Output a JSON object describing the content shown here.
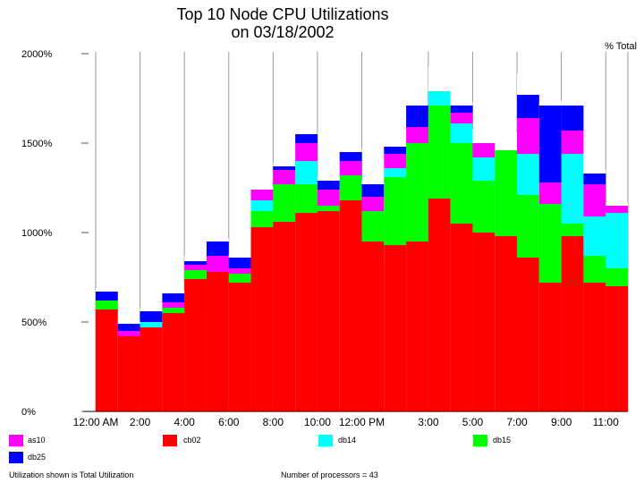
{
  "chart_data": {
    "type": "bar",
    "stacked": true,
    "title": [
      "Top 10 Node CPU Utilizations",
      "on 03/18/2002"
    ],
    "unit_label": "% Total",
    "ylim": [
      0,
      2000
    ],
    "y_ticks": [
      "0%",
      "500%",
      "1000%",
      "1500%",
      "2000%"
    ],
    "y_tick_values": [
      0,
      500,
      1000,
      1500,
      2000
    ],
    "x_tick_labels": [
      "12:00 AM",
      "2:00",
      "4:00",
      "6:00",
      "8:00",
      "10:00",
      "12:00 PM",
      "3:00",
      "5:00",
      "7:00",
      "9:00",
      "11:00"
    ],
    "x_tick_bar_index": [
      0,
      2,
      4,
      6,
      8,
      10,
      12,
      15,
      17,
      19,
      21,
      23
    ],
    "bar_count": 24,
    "grid": "vertical",
    "legend_placement": "bottom",
    "series": [
      {
        "name": "cb02",
        "color": "#ff0000",
        "values": [
          570,
          420,
          470,
          550,
          740,
          780,
          720,
          1030,
          1060,
          1110,
          1120,
          1180,
          950,
          930,
          950,
          1190,
          1050,
          1000,
          980,
          860,
          720,
          980,
          720,
          700
        ]
      },
      {
        "name": "db15",
        "color": "#00ff00",
        "values": [
          50,
          0,
          0,
          30,
          50,
          0,
          50,
          90,
          210,
          160,
          30,
          140,
          170,
          380,
          550,
          520,
          450,
          290,
          480,
          350,
          440,
          70,
          150,
          100
        ]
      },
      {
        "name": "db14",
        "color": "#00ffff",
        "values": [
          0,
          0,
          30,
          0,
          0,
          0,
          0,
          60,
          0,
          130,
          0,
          0,
          0,
          50,
          0,
          80,
          110,
          130,
          0,
          230,
          0,
          390,
          220,
          310
        ]
      },
      {
        "name": "as10",
        "color": "#ff00ff",
        "values": [
          0,
          30,
          0,
          30,
          30,
          90,
          30,
          60,
          80,
          100,
          90,
          80,
          80,
          80,
          90,
          0,
          60,
          80,
          0,
          200,
          120,
          130,
          180,
          40
        ]
      },
      {
        "name": "db25",
        "color": "#0000ff",
        "values": [
          50,
          40,
          60,
          50,
          20,
          80,
          60,
          0,
          20,
          50,
          50,
          50,
          70,
          40,
          120,
          0,
          40,
          0,
          0,
          130,
          430,
          140,
          60,
          0
        ]
      }
    ],
    "other": {
      "name": "",
      "color": "#ffffff",
      "values": [
        20,
        20,
        20,
        20,
        30,
        20,
        20,
        20,
        20,
        0,
        20,
        20,
        20,
        20,
        0,
        140,
        20,
        80,
        100,
        120,
        20,
        30,
        20,
        20
      ]
    }
  },
  "legend": [
    {
      "label": "as10",
      "color": "#ff00ff"
    },
    {
      "label": "cb02",
      "color": "#ff0000"
    },
    {
      "label": "db14",
      "color": "#00ffff"
    },
    {
      "label": "db15",
      "color": "#00ff00"
    },
    {
      "label": "db25",
      "color": "#0000ff"
    }
  ],
  "footer": {
    "left": "Utilization shown is Total Utilization",
    "right": "Number of processors = 43"
  }
}
